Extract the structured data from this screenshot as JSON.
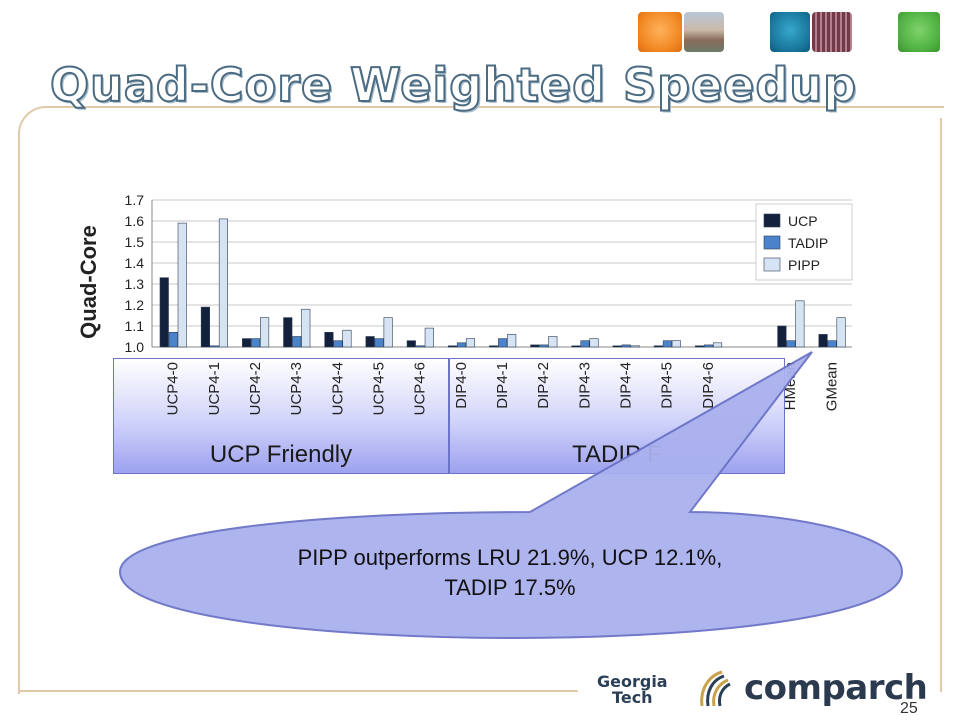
{
  "slide": {
    "title": "Quad-Core Weighted Speedup",
    "page_number": "25"
  },
  "logos": {
    "gt_line1": "Georgia",
    "gt_line2": "Tech",
    "comparch": "comparch"
  },
  "groups": {
    "ucp_label": "UCP Friendly",
    "tadip_label": "TADIP F"
  },
  "callout": {
    "line1": "PIPP outperforms LRU 21.9%, UCP 12.1%,",
    "line2": "TADIP 17.5%"
  },
  "colors": {
    "ucp": "#14213d",
    "tadip": "#4a83c9",
    "pipp": "#d6e3f3",
    "callout_fill": "#aab1ee",
    "callout_stroke": "#6a72c6"
  },
  "chart_data": {
    "type": "bar",
    "ylabel": "Quad-Core",
    "ylim": [
      1.0,
      1.7
    ],
    "yticks": [
      "1.0",
      "1.1",
      "1.2",
      "1.3",
      "1.4",
      "1.5",
      "1.6",
      "1.7"
    ],
    "grid": true,
    "legend_position": "top-right",
    "categories": [
      "UCP4-0",
      "UCP4-1",
      "UCP4-2",
      "UCP4-3",
      "UCP4-4",
      "UCP4-5",
      "UCP4-6",
      "DIP4-0",
      "DIP4-1",
      "DIP4-2",
      "DIP4-3",
      "DIP4-4",
      "DIP4-5",
      "DIP4-6",
      "",
      "HMean",
      "GMean"
    ],
    "series": [
      {
        "name": "UCP",
        "values": [
          1.33,
          1.19,
          1.04,
          1.14,
          1.07,
          1.05,
          1.03,
          1.0,
          1.0,
          1.01,
          1.0,
          1.0,
          1.0,
          1.0,
          null,
          1.1,
          1.06
        ]
      },
      {
        "name": "TADIP",
        "values": [
          1.07,
          1.0,
          1.04,
          1.05,
          1.03,
          1.04,
          1.0,
          1.02,
          1.04,
          1.01,
          1.03,
          1.01,
          1.03,
          1.01,
          null,
          1.03,
          1.03
        ]
      },
      {
        "name": "PIPP",
        "values": [
          1.59,
          1.61,
          1.14,
          1.18,
          1.08,
          1.14,
          1.09,
          1.04,
          1.06,
          1.05,
          1.04,
          1.0,
          1.03,
          1.02,
          null,
          1.22,
          1.14
        ]
      }
    ]
  }
}
